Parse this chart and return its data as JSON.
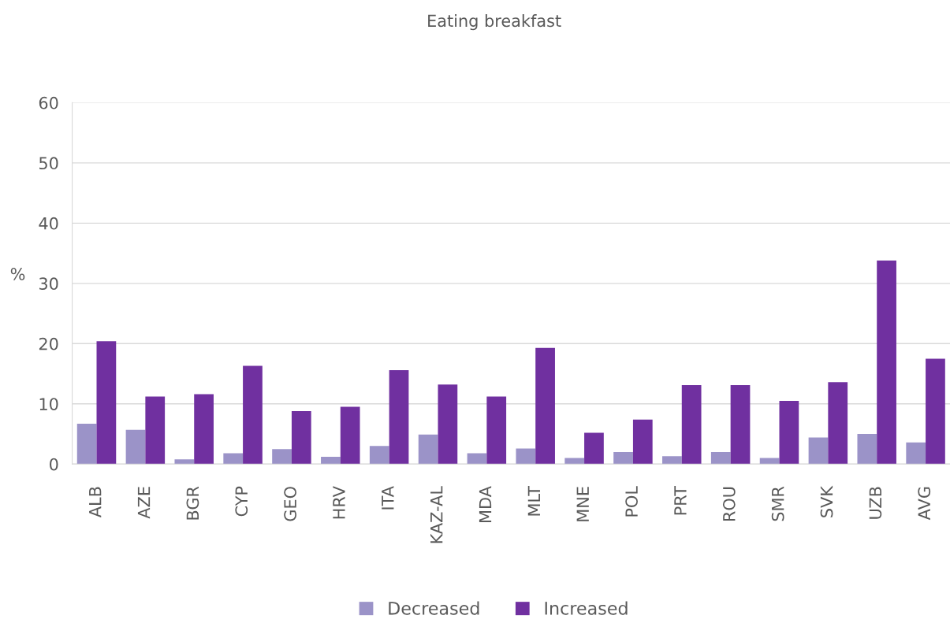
{
  "chart_data": {
    "type": "bar",
    "title": "Eating breakfast",
    "ylabel": "%",
    "categories": [
      "ALB",
      "AZE",
      "BGR",
      "CYP",
      "GEO",
      "HRV",
      "ITA",
      "KAZ-AL",
      "MDA",
      "MLT",
      "MNE",
      "POL",
      "PRT",
      "ROU",
      "SMR",
      "SVK",
      "UZB",
      "AVG"
    ],
    "series": [
      {
        "name": "Decreased",
        "color": "#9b93c8",
        "values": [
          6.7,
          5.7,
          0.8,
          1.8,
          2.5,
          1.2,
          3.0,
          4.9,
          1.8,
          2.6,
          1.0,
          2.0,
          1.3,
          2.0,
          1.0,
          4.4,
          5.0,
          3.6
        ]
      },
      {
        "name": "Increased",
        "color": "#7030a0",
        "values": [
          20.4,
          11.2,
          11.6,
          16.3,
          8.8,
          9.5,
          15.6,
          13.2,
          11.2,
          19.3,
          5.2,
          7.4,
          13.1,
          13.1,
          10.5,
          13.6,
          33.8,
          17.5
        ]
      }
    ],
    "ylim": [
      0,
      60
    ],
    "yticks": [
      0,
      10,
      20,
      30,
      40,
      50,
      60
    ],
    "grid": "y",
    "legend": "bottom"
  }
}
